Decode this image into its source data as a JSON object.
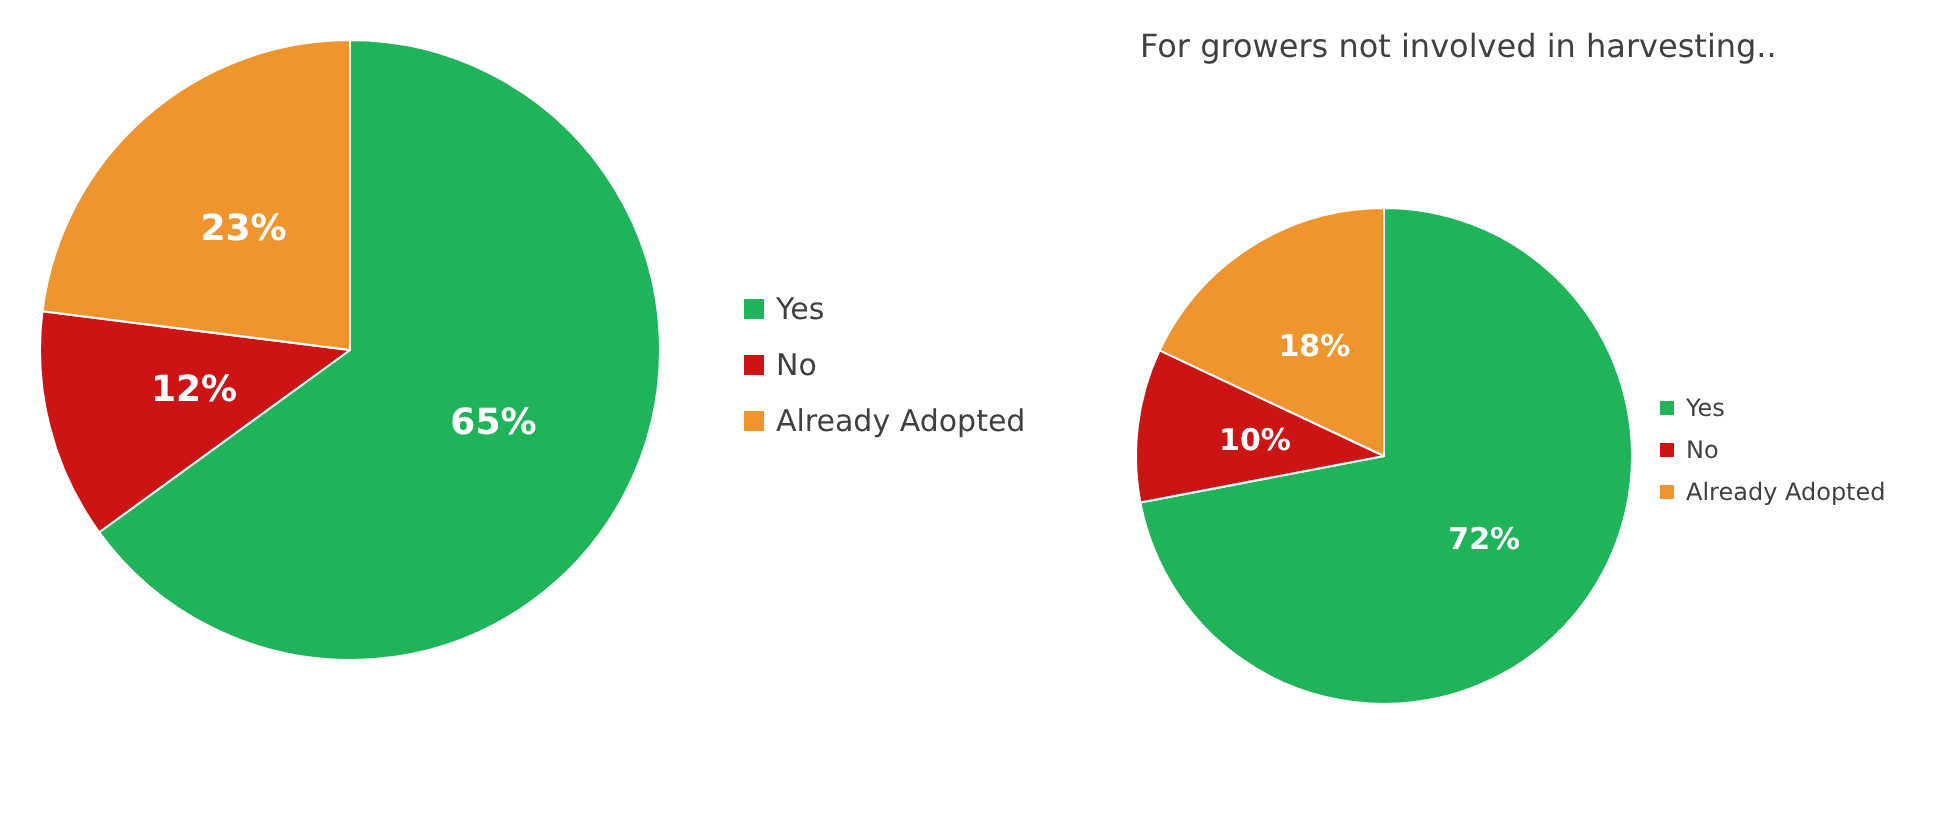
{
  "chart_data": [
    {
      "type": "pie",
      "categories": [
        "Yes",
        "No",
        "Already Adopted"
      ],
      "values": [
        65,
        12,
        23
      ],
      "colors": [
        "#1fb45a",
        "#cc1414",
        "#f0952e"
      ],
      "value_labels": [
        "65%",
        "12%",
        "23%"
      ],
      "legend": "right"
    },
    {
      "type": "pie",
      "title": "For growers not involved in harvesting..",
      "categories": [
        "Yes",
        "No",
        "Already Adopted"
      ],
      "values": [
        72,
        10,
        18
      ],
      "colors": [
        "#1fb45a",
        "#cc1414",
        "#f0952e"
      ],
      "value_labels": [
        "72%",
        "10%",
        "18%"
      ],
      "legend": "right"
    }
  ]
}
